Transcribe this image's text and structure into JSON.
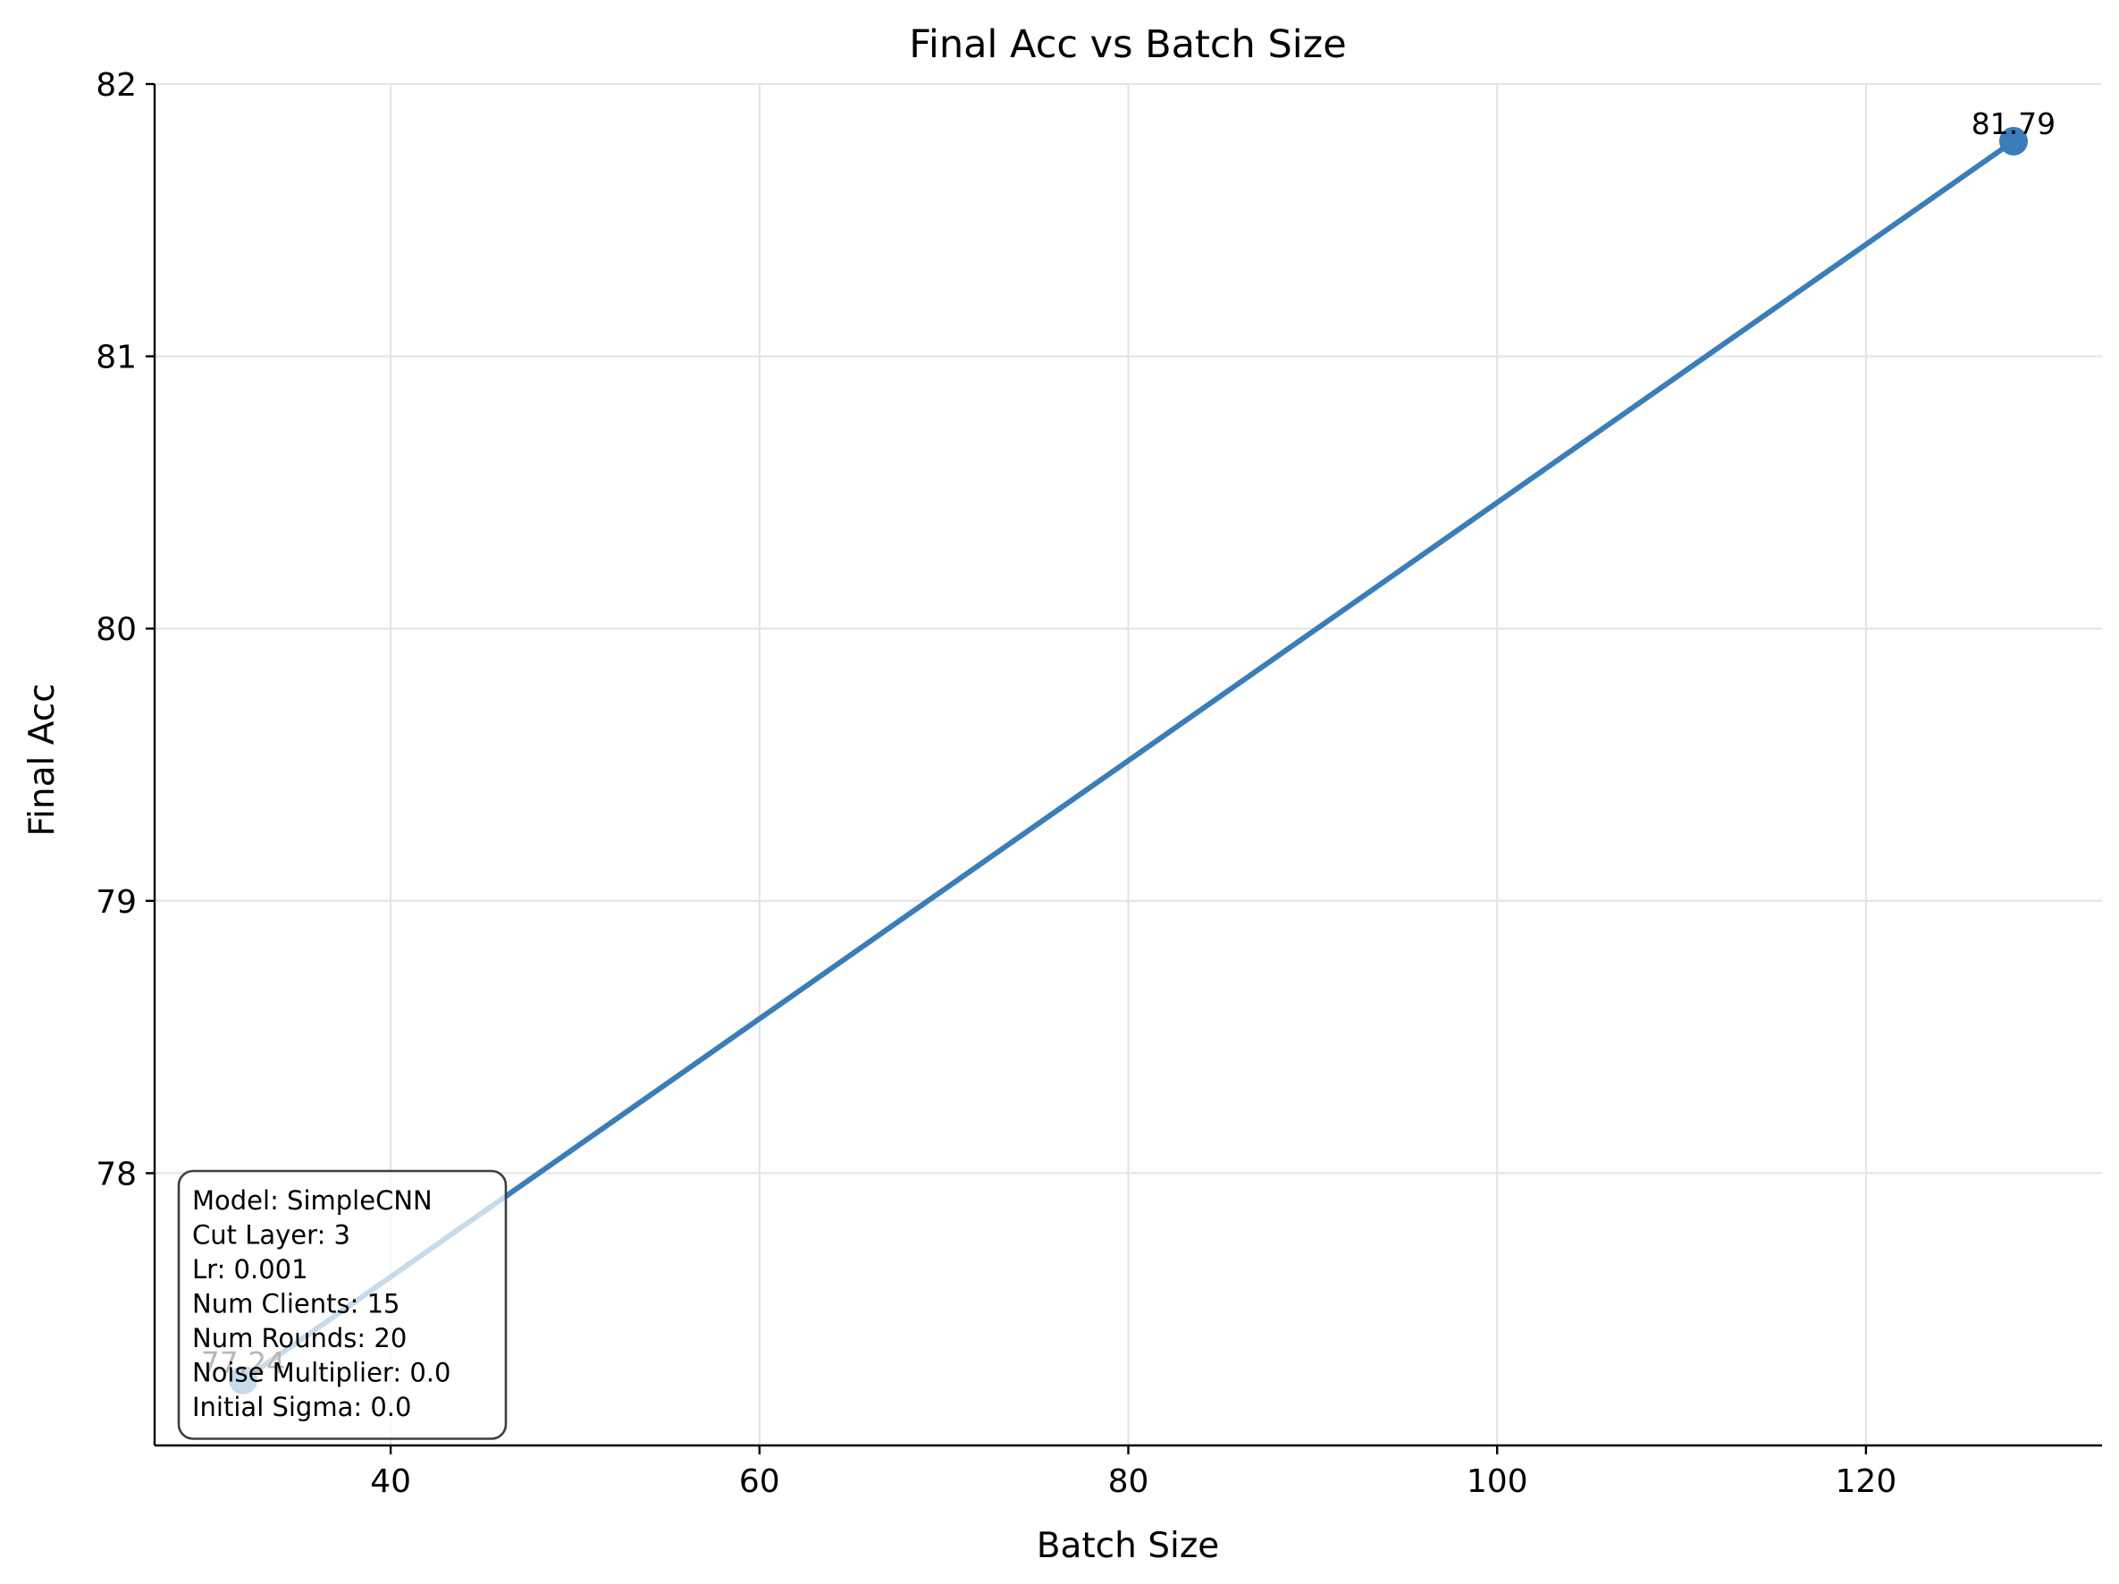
{
  "chart_data": {
    "type": "line",
    "title": "Final Acc vs Batch Size",
    "xlabel": "Batch Size",
    "ylabel": "Final Acc",
    "xlim": [
      27.2,
      132.8
    ],
    "ylim": [
      77.0,
      82.0
    ],
    "xticks": [
      40,
      60,
      80,
      100,
      120
    ],
    "yticks": [
      78,
      79,
      80,
      81,
      82
    ],
    "grid": true,
    "color": "#3a7db9",
    "series": [
      {
        "x": [
          32,
          128
        ],
        "y": [
          77.24,
          81.79
        ],
        "labels": [
          "77.24",
          "81.79"
        ]
      }
    ],
    "info_box": {
      "position": "bottom-left",
      "lines": [
        "Model: SimpleCNN",
        "Cut Layer: 3",
        "Lr: 0.001",
        "Num Clients: 15",
        "Num Rounds: 20",
        "Noise Multiplier: 0.0",
        "Initial Sigma: 0.0"
      ]
    }
  }
}
